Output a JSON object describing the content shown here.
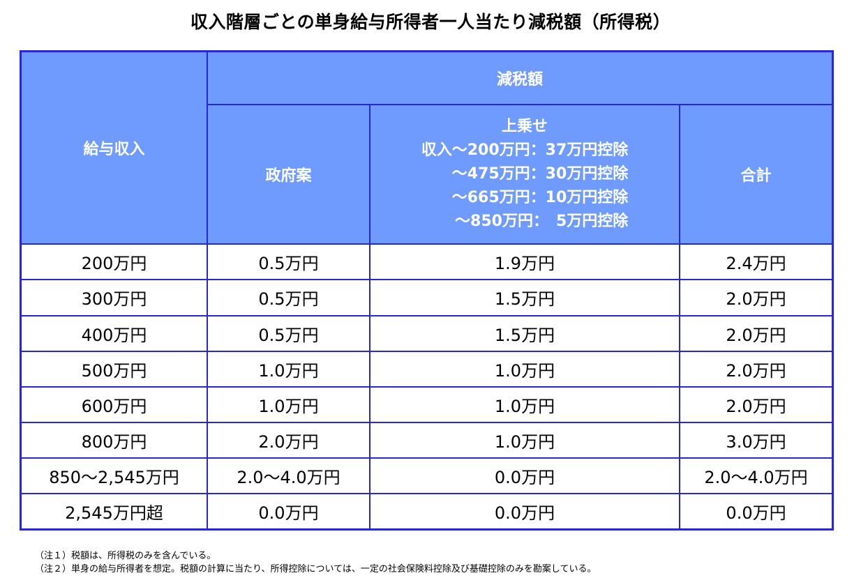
{
  "title": "収入階層ごとの単身給与所得者一人当たり減税額（所得税）",
  "table": {
    "col_income_label": "給与収入",
    "group_label": "減税額",
    "col_gov_label": "政府案",
    "col_surcharge_lines": [
      "上乗せ",
      "収入～200万円：37万円控除",
      "～475万円：30万円控除",
      "～665万円：10万円控除",
      "～850万円：　5万円控除"
    ],
    "col_total_label": "合計",
    "rows": [
      {
        "income": "200万円",
        "gov": "0.5万円",
        "surcharge": "1.9万円",
        "total": "2.4万円"
      },
      {
        "income": "300万円",
        "gov": "0.5万円",
        "surcharge": "1.5万円",
        "total": "2.0万円"
      },
      {
        "income": "400万円",
        "gov": "0.5万円",
        "surcharge": "1.5万円",
        "total": "2.0万円"
      },
      {
        "income": "500万円",
        "gov": "1.0万円",
        "surcharge": "1.0万円",
        "total": "2.0万円"
      },
      {
        "income": "600万円",
        "gov": "1.0万円",
        "surcharge": "1.0万円",
        "total": "2.0万円"
      },
      {
        "income": "800万円",
        "gov": "2.0万円",
        "surcharge": "1.0万円",
        "total": "3.0万円"
      },
      {
        "income": "850～2,545万円",
        "gov": "2.0～4.0万円",
        "surcharge": "0.0万円",
        "total": "2.0～4.0万円"
      },
      {
        "income": "2,545万円超",
        "gov": "0.0万円",
        "surcharge": "0.0万円",
        "total": "0.0万円"
      }
    ]
  },
  "notes": [
    "（注１）税額は、所得税のみを含んでいる。",
    "（注２）単身の給与所得者を想定。税額の計算に当たり、所得控除については、一定の社会保険料控除及び基礎控除のみを勘案している。"
  ],
  "colors": {
    "header_bg": "#6f9bff",
    "border": "#2727d6",
    "header_text": "#ffffff"
  }
}
